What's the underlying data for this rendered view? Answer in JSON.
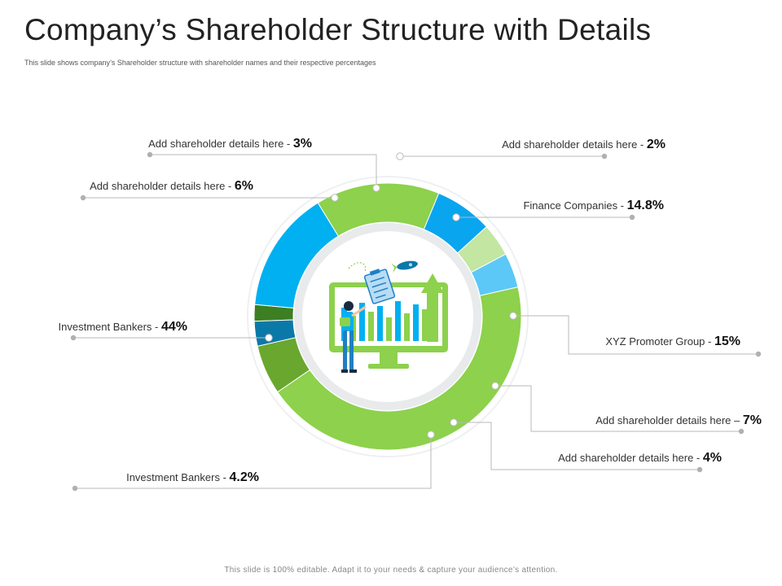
{
  "header": {
    "title": "Company’s Shareholder Structure with Details",
    "subtitle": "This slide shows company’s Shareholder structure with shareholder names and their respective percentages"
  },
  "footer": {
    "text": "This slide is 100% editable. Adapt it to your needs & capture your audience’s attention."
  },
  "chart_data": {
    "type": "pie",
    "style": "donut",
    "slices": [
      {
        "label": "Add shareholder details here - ",
        "value_label": "2%",
        "value": 2,
        "color": "#3c7f22"
      },
      {
        "label": "Finance Companies - ",
        "value_label": "14.8%",
        "value": 14.8,
        "color": "#00b0f0"
      },
      {
        "label": "XYZ Promoter Group - ",
        "value_label": "15%",
        "value": 15,
        "color": "#8dd14c"
      },
      {
        "label": "Add shareholder details here – ",
        "value_label": "7%",
        "value": 7,
        "color": "#0aa5ef"
      },
      {
        "label": "Add shareholder details here - ",
        "value_label": "4%",
        "value": 4,
        "color": "#c3e6a2"
      },
      {
        "label": "Investment Bankers - ",
        "value_label": "4.2%",
        "value": 4.2,
        "color": "#5cc8f7"
      },
      {
        "label": "Investment Bankers - ",
        "value_label": "44%",
        "value": 44,
        "color": "#8dd14c"
      },
      {
        "label": "Add shareholder details here - ",
        "value_label": "6%",
        "value": 6,
        "color": "#69a72f"
      },
      {
        "label": "Add shareholder details here - ",
        "value_label": "3%",
        "value": 3,
        "color": "#0b79a8"
      }
    ]
  }
}
